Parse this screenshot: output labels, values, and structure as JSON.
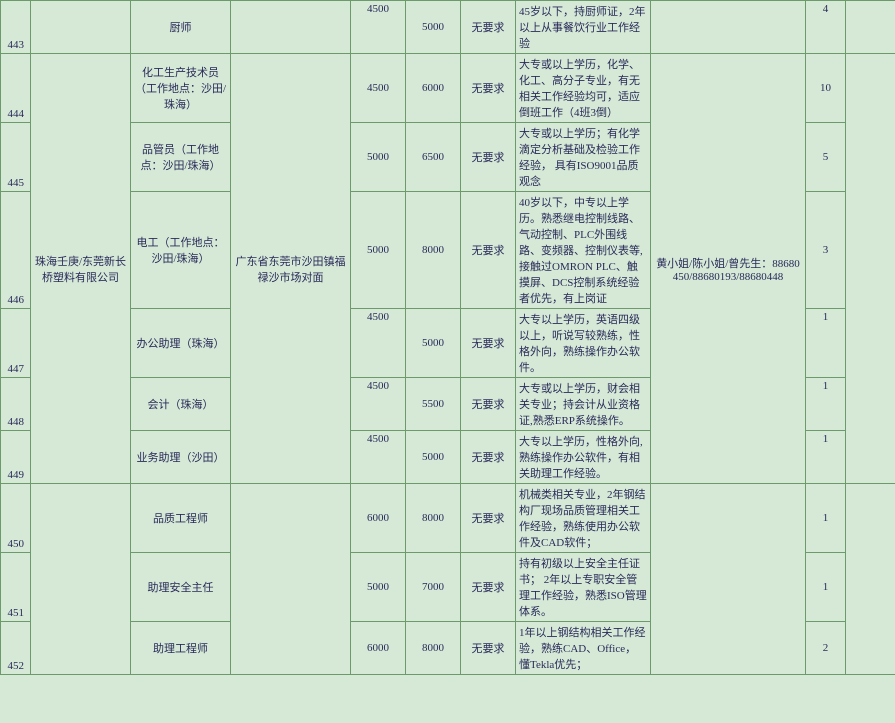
{
  "rows": [
    {
      "num": "443",
      "company": "",
      "position": "厨师",
      "address": "",
      "salary_min": "4500",
      "salary_max": "5000",
      "requirement": "无要求",
      "desc": "45岁以下，持厨师证，2年以上从事餐饮行业工作经验",
      "contact": "",
      "count": "4",
      "extra": ""
    },
    {
      "num": "444",
      "company": "珠海壬庚/东莞新长桥塑料有限公司",
      "position": "化工生产技术员（工作地点：沙田/珠海）",
      "address": "广东省东莞市沙田镇福禄沙市场对面",
      "salary_min": "4500",
      "salary_max": "6000",
      "requirement": "无要求",
      "desc": "大专或以上学历，化学、化工、高分子专业，有无相关工作经验均可，适应倒班工作（4班3倒）",
      "contact": "黄小姐/陈小姐/曾先生：88680450/88680193/88680448",
      "count": "10",
      "extra": ""
    },
    {
      "num": "445",
      "position": "品管员（工作地点：沙田/珠海）",
      "salary_min": "5000",
      "salary_max": "6500",
      "requirement": "无要求",
      "desc": "大专或以上学历；有化学滴定分析基础及检验工作经验，  具有ISO9001品质观念",
      "count": "5",
      "extra": ""
    },
    {
      "num": "446",
      "position": "电工（工作地点：沙田/珠海）",
      "salary_min": "5000",
      "salary_max": "8000",
      "requirement": "无要求",
      "desc": "40岁以下，中专以上学历。熟悉继电控制线路、气动控制、PLC外围线路、变频器、控制仪表等,接触过OMRON PLC、触摸屏、DCS控制系统经验者优先，有上岗证",
      "count": "3",
      "extra": ""
    },
    {
      "num": "447",
      "position": "办公助理（珠海）",
      "salary_min": "4500",
      "salary_max": "5000",
      "requirement": "无要求",
      "desc": "大专以上学历，英语四级以上，听说写较熟练，性格外向，熟练操作办公软件。",
      "count": "1",
      "extra": ""
    },
    {
      "num": "448",
      "position": "会计（珠海）",
      "salary_min": "4500",
      "salary_max": "5500",
      "requirement": "无要求",
      "desc": "大专或以上学历，财会相关专业；持会计从业资格证,熟悉ERP系统操作。",
      "count": "1",
      "extra": ""
    },
    {
      "num": "449",
      "position": "业务助理（沙田）",
      "salary_min": "4500",
      "salary_max": "5000",
      "requirement": "无要求",
      "desc": "大专以上学历，性格外向,熟练操作办公软件，有相关助理工作经验。",
      "count": "1",
      "extra": ""
    },
    {
      "num": "450",
      "company": "",
      "position": "品质工程师",
      "address": "",
      "salary_min": "6000",
      "salary_max": "8000",
      "requirement": "无要求",
      "desc": "机械类相关专业，2年钢结构厂现场品质管理相关工作经验，熟练使用办公软件及CAD软件；",
      "contact": "",
      "count": "1",
      "extra": ""
    },
    {
      "num": "451",
      "position": "助理安全主任",
      "salary_min": "5000",
      "salary_max": "7000",
      "requirement": "无要求",
      "desc": "持有初级以上安全主任证书； 2年以上专职安全管理工作经验，熟悉ISO管理体系。",
      "count": "1",
      "extra": ""
    },
    {
      "num": "452",
      "position": "助理工程师",
      "salary_min": "6000",
      "salary_max": "8000",
      "requirement": "无要求",
      "desc": "1年以上钢结构相关工作经验，熟练CAD、Office，懂Tekla优先；",
      "count": "2",
      "extra": ""
    }
  ]
}
